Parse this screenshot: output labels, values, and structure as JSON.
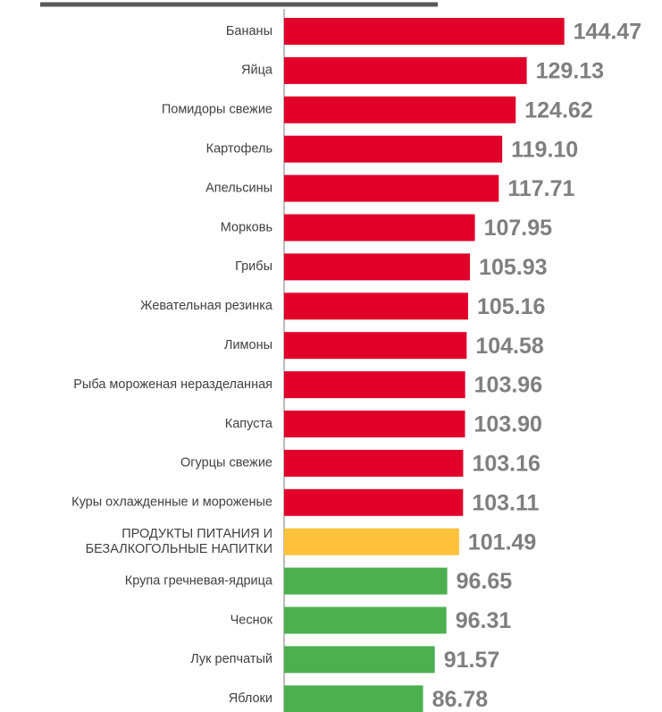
{
  "chart_data": {
    "type": "barh",
    "categories": [
      "Бананы",
      "Яйца",
      "Помидоры свежие",
      "Картофель",
      "Апельсины",
      "Морковь",
      "Грибы",
      "Жевательная резинка",
      "Лимоны",
      "Рыба мороженая неразделанная",
      "Капуста",
      "Огурцы свежие",
      "Куры охлажденные и мороженые",
      "ПРОДУКТЫ ПИТАНИЯ И\nБЕЗАЛКОГОЛЬНЫЕ НАПИТКИ",
      "Крупа гречневая-ядрица",
      "Чеснок",
      "Лук репчатый",
      "Яблоки"
    ],
    "values": [
      144.47,
      129.13,
      124.62,
      119.1,
      117.71,
      107.95,
      105.93,
      105.16,
      104.58,
      103.96,
      103.9,
      103.16,
      103.11,
      101.49,
      96.65,
      96.31,
      91.57,
      86.78
    ],
    "value_labels": [
      "144.47",
      "129.13",
      "124.62",
      "119.10",
      "117.71",
      "107.95",
      "105.93",
      "105.16",
      "104.58",
      "103.96",
      "103.90",
      "103.16",
      "103.11",
      "101.49",
      "96.65",
      "96.31",
      "91.57",
      "86.78"
    ],
    "colors": [
      "#e0002a",
      "#e0002a",
      "#e0002a",
      "#e0002a",
      "#e0002a",
      "#e0002a",
      "#e0002a",
      "#e0002a",
      "#e0002a",
      "#e0002a",
      "#e0002a",
      "#e0002a",
      "#e0002a",
      "#fdc13c",
      "#4caf50",
      "#4caf50",
      "#4caf50",
      "#4caf50"
    ],
    "xlim": [
      30,
      180
    ]
  }
}
